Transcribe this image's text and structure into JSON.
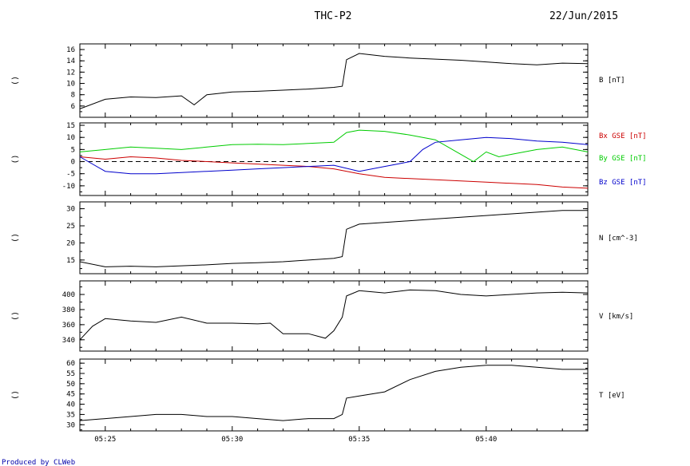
{
  "header": {
    "title": "THC-P2",
    "date": "22/Jun/2015"
  },
  "footer": {
    "credit": "Produced by CLWeb"
  },
  "colors": {
    "axes": "#000000",
    "trace": "#000000",
    "bx": "#cc0000",
    "by": "#00cc00",
    "bz": "#0000cc",
    "credit": "#0000aa"
  },
  "chart_data": [
    {
      "type": "line",
      "panel": "B",
      "side_label": "()",
      "xlim": [
        "05:24",
        "05:44"
      ],
      "x_ticks": [
        "05:25",
        "05:30",
        "05:35",
        "05:40"
      ],
      "ylim": [
        4,
        17
      ],
      "y_ticks": [
        6,
        8,
        10,
        12,
        14,
        16
      ],
      "series": [
        {
          "name": "B [nT]",
          "color": "#000000",
          "x": [
            "05:24:00",
            "05:25:00",
            "05:26:00",
            "05:27:00",
            "05:28:00",
            "05:28:30",
            "05:29:00",
            "05:30:00",
            "05:31:00",
            "05:32:00",
            "05:33:00",
            "05:34:00",
            "05:34:20",
            "05:34:30",
            "05:35:00",
            "05:36:00",
            "05:37:00",
            "05:38:00",
            "05:39:00",
            "05:40:00",
            "05:41:00",
            "05:42:00",
            "05:43:00",
            "05:44:00"
          ],
          "values": [
            5.5,
            7.2,
            7.6,
            7.5,
            7.8,
            6.2,
            8.0,
            8.5,
            8.6,
            8.8,
            9.0,
            9.3,
            9.5,
            14.2,
            15.3,
            14.8,
            14.5,
            14.3,
            14.1,
            13.8,
            13.5,
            13.3,
            13.6,
            13.5
          ]
        }
      ]
    },
    {
      "type": "line",
      "panel": "B GSE",
      "side_label": "()",
      "xlim": [
        "05:24",
        "05:44"
      ],
      "x_ticks": [
        "05:25",
        "05:30",
        "05:35",
        "05:40"
      ],
      "ylim": [
        -14,
        16
      ],
      "y_ticks": [
        -10,
        -5,
        0,
        5,
        10,
        15
      ],
      "zero_line": true,
      "series": [
        {
          "name": "Bx GSE [nT]",
          "color": "#cc0000",
          "x": [
            "05:24:00",
            "05:25:00",
            "05:26:00",
            "05:27:00",
            "05:28:00",
            "05:29:00",
            "05:30:00",
            "05:31:00",
            "05:32:00",
            "05:33:00",
            "05:34:00",
            "05:35:00",
            "05:36:00",
            "05:37:00",
            "05:38:00",
            "05:39:00",
            "05:40:00",
            "05:41:00",
            "05:42:00",
            "05:43:00",
            "05:44:00"
          ],
          "values": [
            2.0,
            1.0,
            2.0,
            1.5,
            0.5,
            0.0,
            -0.5,
            -1.0,
            -1.5,
            -2.0,
            -3.0,
            -5.0,
            -6.5,
            -7.0,
            -7.5,
            -8.0,
            -8.5,
            -9.0,
            -9.5,
            -10.5,
            -11.0
          ]
        },
        {
          "name": "By GSE [nT]",
          "color": "#00cc00",
          "x": [
            "05:24:00",
            "05:25:00",
            "05:26:00",
            "05:27:00",
            "05:28:00",
            "05:29:00",
            "05:30:00",
            "05:31:00",
            "05:32:00",
            "05:33:00",
            "05:34:00",
            "05:34:30",
            "05:35:00",
            "05:36:00",
            "05:37:00",
            "05:38:00",
            "05:38:30",
            "05:39:00",
            "05:39:30",
            "05:40:00",
            "05:40:30",
            "05:41:00",
            "05:42:00",
            "05:43:00",
            "05:44:00"
          ],
          "values": [
            4.0,
            5.0,
            6.0,
            5.5,
            5.0,
            6.0,
            7.0,
            7.2,
            7.0,
            7.5,
            8.0,
            12.0,
            13.0,
            12.5,
            11.0,
            9.0,
            6.0,
            3.0,
            0.0,
            4.0,
            2.0,
            3.0,
            5.0,
            6.0,
            4.0
          ]
        },
        {
          "name": "Bz GSE [nT]",
          "color": "#0000cc",
          "x": [
            "05:24:00",
            "05:25:00",
            "05:26:00",
            "05:27:00",
            "05:28:00",
            "05:29:00",
            "05:30:00",
            "05:31:00",
            "05:32:00",
            "05:33:00",
            "05:34:00",
            "05:35:00",
            "05:36:00",
            "05:36:30",
            "05:37:00",
            "05:37:30",
            "05:38:00",
            "05:39:00",
            "05:40:00",
            "05:41:00",
            "05:42:00",
            "05:43:00",
            "05:44:00"
          ],
          "values": [
            2.0,
            -4.0,
            -5.0,
            -5.0,
            -4.5,
            -4.0,
            -3.5,
            -3.0,
            -2.5,
            -2.0,
            -1.5,
            -4.0,
            -2.0,
            -1.0,
            0.0,
            5.0,
            8.0,
            9.0,
            10.0,
            9.5,
            8.5,
            8.0,
            7.0
          ]
        }
      ]
    },
    {
      "type": "line",
      "panel": "N",
      "side_label": "()",
      "xlim": [
        "05:24",
        "05:44"
      ],
      "x_ticks": [
        "05:25",
        "05:30",
        "05:35",
        "05:40"
      ],
      "ylim": [
        11,
        32
      ],
      "y_ticks": [
        15,
        20,
        25,
        30
      ],
      "series": [
        {
          "name": "N [cm^-3]",
          "color": "#000000",
          "x": [
            "05:24:00",
            "05:25:00",
            "05:26:00",
            "05:27:00",
            "05:28:00",
            "05:29:00",
            "05:30:00",
            "05:31:00",
            "05:32:00",
            "05:33:00",
            "05:34:00",
            "05:34:20",
            "05:34:30",
            "05:35:00",
            "05:36:00",
            "05:37:00",
            "05:38:00",
            "05:39:00",
            "05:40:00",
            "05:41:00",
            "05:42:00",
            "05:43:00",
            "05:44:00"
          ],
          "values": [
            14.5,
            13.0,
            13.2,
            13.0,
            13.3,
            13.6,
            14.0,
            14.2,
            14.5,
            15.0,
            15.5,
            16.0,
            24.0,
            25.5,
            26.0,
            26.5,
            27.0,
            27.5,
            28.0,
            28.5,
            29.0,
            29.5,
            29.5
          ]
        }
      ]
    },
    {
      "type": "line",
      "panel": "V",
      "side_label": "()",
      "xlim": [
        "05:24",
        "05:44"
      ],
      "x_ticks": [
        "05:25",
        "05:30",
        "05:35",
        "05:40"
      ],
      "ylim": [
        325,
        418
      ],
      "y_ticks": [
        340,
        360,
        380,
        400
      ],
      "series": [
        {
          "name": "V [km/s]",
          "color": "#000000",
          "x": [
            "05:24:00",
            "05:24:30",
            "05:25:00",
            "05:26:00",
            "05:27:00",
            "05:28:00",
            "05:29:00",
            "05:30:00",
            "05:31:00",
            "05:31:30",
            "05:32:00",
            "05:33:00",
            "05:33:40",
            "05:34:00",
            "05:34:20",
            "05:34:30",
            "05:35:00",
            "05:36:00",
            "05:37:00",
            "05:38:00",
            "05:39:00",
            "05:40:00",
            "05:41:00",
            "05:42:00",
            "05:43:00",
            "05:44:00"
          ],
          "values": [
            340,
            358,
            368,
            365,
            363,
            370,
            362,
            362,
            361,
            362,
            348,
            348,
            342,
            352,
            370,
            398,
            405,
            402,
            406,
            405,
            400,
            398,
            400,
            402,
            403,
            402
          ]
        }
      ]
    },
    {
      "type": "line",
      "panel": "T",
      "side_label": "()",
      "xlim": [
        "05:24",
        "05:44"
      ],
      "x_ticks": [
        "05:25",
        "05:30",
        "05:35",
        "05:40"
      ],
      "ylim": [
        27,
        62
      ],
      "y_ticks": [
        30,
        35,
        40,
        45,
        50,
        55,
        60
      ],
      "series": [
        {
          "name": "T [eV]",
          "color": "#000000",
          "x": [
            "05:24:00",
            "05:25:00",
            "05:26:00",
            "05:27:00",
            "05:28:00",
            "05:29:00",
            "05:30:00",
            "05:31:00",
            "05:32:00",
            "05:33:00",
            "05:34:00",
            "05:34:20",
            "05:34:30",
            "05:35:00",
            "05:36:00",
            "05:37:00",
            "05:38:00",
            "05:39:00",
            "05:40:00",
            "05:41:00",
            "05:42:00",
            "05:43:00",
            "05:44:00"
          ],
          "values": [
            32,
            33,
            34,
            35,
            35,
            34,
            34,
            33,
            32,
            33,
            33,
            35,
            43,
            44,
            46,
            52,
            56,
            58,
            59,
            59,
            58,
            57,
            57
          ]
        }
      ]
    }
  ]
}
